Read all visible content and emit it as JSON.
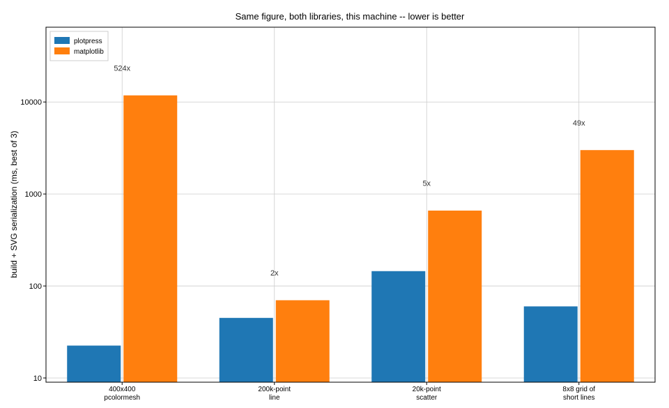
{
  "chart_data": {
    "type": "bar",
    "title": "Same figure, both libraries, this machine -- lower is better",
    "xlabel": "",
    "ylabel": "build + SVG serialization (ms, best of 3)",
    "yscale": "log",
    "ylim": [
      9,
      65000
    ],
    "yticks": [
      10,
      100,
      1000,
      10000
    ],
    "ytick_labels": [
      "10",
      "100",
      "1000",
      "10000"
    ],
    "grid": true,
    "legend_position": "top-left",
    "categories": [
      "400x400\npcolormesh",
      "200k-point\nline",
      "20k-point\nscatter",
      "8x8 grid of\nshort lines"
    ],
    "series": [
      {
        "name": "plotpress",
        "color": "#1f77b4",
        "values": [
          22.5,
          45,
          145,
          60
        ]
      },
      {
        "name": "matplotlib",
        "color": "#ff7f0e",
        "values": [
          11800,
          70,
          660,
          3000
        ]
      }
    ],
    "annotations": [
      "524x",
      "2x",
      "5x",
      "49x"
    ]
  }
}
